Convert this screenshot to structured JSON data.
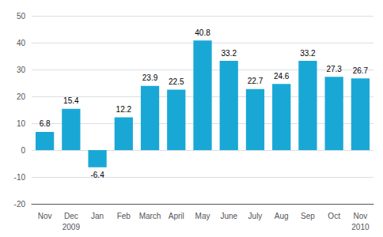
{
  "chart_data": {
    "type": "bar",
    "categories": [
      "Nov",
      "Dec",
      "Jan",
      "Feb",
      "March",
      "April",
      "May",
      "June",
      "July",
      "Aug",
      "Sep",
      "Oct",
      "Nov"
    ],
    "values": [
      6.8,
      15.4,
      -6.4,
      12.2,
      23.9,
      22.5,
      40.8,
      33.2,
      22.7,
      24.6,
      33.2,
      27.3,
      26.7
    ],
    "color": "#19A8D6",
    "ylim": [
      -20,
      50
    ],
    "yticks": [
      -20,
      -10,
      0,
      10,
      20,
      30,
      40,
      50
    ],
    "grid": true,
    "data_labels": true,
    "annotations": [
      {
        "text": "2009",
        "x": 1
      },
      {
        "text": "2010",
        "x": 12
      }
    ]
  }
}
